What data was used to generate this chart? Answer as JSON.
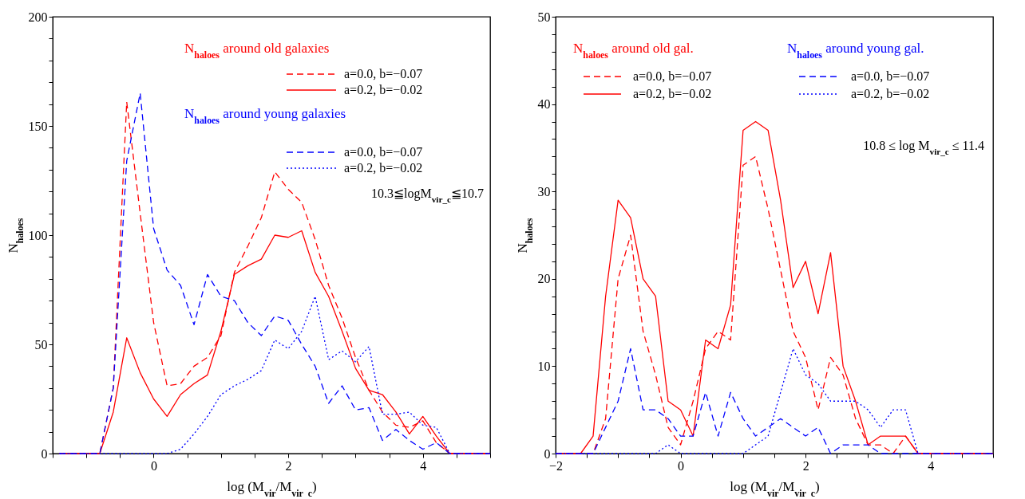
{
  "chart_data": [
    {
      "type": "line",
      "xlabel": "log (M$_{vir}$/M$_{vir_c}$)",
      "ylabel": "N$_{haloes}$",
      "annotations": [
        "N$_{haloes}$ around old galaxies",
        "N$_{haloes}$ around young galaxies",
        "10.3≦logM$_{vir_c}$≦10.7"
      ],
      "x": [
        -1.4,
        -1.2,
        -1.0,
        -0.8,
        -0.6,
        -0.4,
        -0.2,
        0,
        0.2,
        0.4,
        0.6,
        0.8,
        1.0,
        1.2,
        1.4,
        1.6,
        1.8,
        2.0,
        2.2,
        2.4,
        2.6,
        2.8,
        3.0,
        3.2,
        3.4,
        3.6,
        3.8,
        4.0,
        4.2,
        4.4,
        4.6,
        4.8,
        5.0
      ],
      "series": [
        {
          "name": "a=0.0,  b=−0.07",
          "color": "#ff0000",
          "line_style": "dashed",
          "values": [
            0,
            0,
            0,
            0,
            30,
            161,
            110,
            60,
            31,
            32,
            40,
            44,
            54,
            83,
            95,
            108,
            129,
            121,
            115,
            98,
            77,
            62,
            44,
            29,
            19,
            13,
            12,
            15,
            5,
            0,
            0,
            0,
            0
          ]
        },
        {
          "name": "a=0.2,  b=−0.02",
          "color": "#ff0000",
          "line_style": "solid",
          "values": [
            0,
            0,
            0,
            0,
            19,
            53,
            37,
            25,
            17,
            27,
            32,
            36,
            56,
            82,
            86,
            89,
            100,
            99,
            102,
            83,
            72,
            56,
            39,
            29,
            27,
            19,
            9,
            17,
            8,
            0,
            0,
            0,
            0
          ]
        },
        {
          "name": "a=0.0,  b=−0.07",
          "color": "#0000ff",
          "line_style": "dashed",
          "values": [
            0,
            0,
            0,
            0,
            30,
            134,
            165,
            103,
            84,
            77,
            59,
            82,
            72,
            70,
            60,
            54,
            63,
            61,
            50,
            40,
            23,
            31,
            20,
            21,
            6,
            11,
            6,
            2,
            5,
            0,
            0,
            0,
            0
          ]
        },
        {
          "name": "a=0.2,  b=−0.02",
          "color": "#0000ff",
          "line_style": "dotted",
          "values": [
            0,
            0,
            0,
            0,
            0,
            0,
            0,
            0,
            0,
            2,
            9,
            17,
            27,
            31,
            34,
            38,
            52,
            48,
            56,
            72,
            43,
            47,
            42,
            49,
            18,
            18,
            19,
            13,
            12,
            0,
            0,
            0,
            0
          ]
        }
      ],
      "xlim": [
        -1.5,
        5
      ],
      "ylim": [
        0,
        200
      ],
      "xticks": [
        {
          "value": -1.5,
          "label": null
        },
        {
          "value": -1,
          "label": null
        },
        {
          "value": -0.5,
          "label": null
        },
        0,
        {
          "value": 0.5,
          "label": null
        },
        {
          "value": 1,
          "label": null
        },
        {
          "value": 1.5,
          "label": null
        },
        2,
        {
          "value": 2.5,
          "label": null
        },
        {
          "value": 3,
          "label": null
        },
        {
          "value": 3.5,
          "label": null
        },
        4,
        {
          "value": 4.5,
          "label": null
        },
        {
          "value": 5,
          "label": null
        }
      ],
      "yticks": [
        0,
        {
          "value": 10,
          "label": null
        },
        {
          "value": 20,
          "label": null
        },
        {
          "value": 30,
          "label": null
        },
        {
          "value": 40,
          "label": null
        },
        50,
        {
          "value": 60,
          "label": null
        },
        {
          "value": 70,
          "label": null
        },
        {
          "value": 80,
          "label": null
        },
        {
          "value": 90,
          "label": null
        },
        100,
        {
          "value": 110,
          "label": null
        },
        {
          "value": 120,
          "label": null
        },
        {
          "value": 130,
          "label": null
        },
        {
          "value": 140,
          "label": null
        },
        150,
        {
          "value": 160,
          "label": null
        },
        {
          "value": 170,
          "label": null
        },
        {
          "value": 180,
          "label": null
        },
        {
          "value": 190,
          "label": null
        },
        200
      ],
      "legend": "top right"
    },
    {
      "type": "line",
      "xlabel": "log (M$_{vir}$/M$_{vir_c}$)",
      "ylabel": "N$_{haloes}$",
      "annotations": [
        "N$_{haloes}$ around old gal.",
        "N$_{haloes}$ around young gal.",
        "10.8 ≤ log M$_{vir_c}$ ≤ 11.4"
      ],
      "x": [
        -2.0,
        -1.8,
        -1.6,
        -1.4,
        -1.2,
        -1.0,
        -0.8,
        -0.6,
        -0.4,
        -0.2,
        0,
        0.2,
        0.4,
        0.6,
        0.8,
        1.0,
        1.2,
        1.4,
        1.6,
        1.8,
        2.0,
        2.2,
        2.4,
        2.6,
        2.8,
        3.0,
        3.2,
        3.4,
        3.6,
        3.8,
        4.0,
        4.2,
        4.4,
        4.6,
        4.8,
        5.0
      ],
      "series": [
        {
          "name": "a=0.0,  b=−0.07",
          "color": "#ff0000",
          "line_style": "dashed",
          "values": [
            0,
            0,
            0,
            0,
            4,
            20,
            25,
            14,
            9,
            3,
            1,
            6,
            12,
            14,
            13,
            33,
            34,
            28,
            21,
            14,
            11,
            5,
            11,
            9,
            4,
            1,
            1,
            0,
            2,
            0,
            0,
            0,
            0,
            0,
            0,
            0
          ]
        },
        {
          "name": "a=0.2,  b=−0.02",
          "color": "#ff0000",
          "line_style": "solid",
          "values": [
            0,
            0,
            0,
            2,
            18,
            29,
            27,
            20,
            18,
            6,
            5,
            2,
            13,
            12,
            17,
            37,
            38,
            37,
            29,
            19,
            22,
            16,
            23,
            10,
            6,
            1,
            2,
            2,
            2,
            0,
            0,
            0,
            0,
            0,
            0,
            0
          ]
        },
        {
          "name": "a=0.0,  b=−0.07",
          "color": "#0000ff",
          "line_style": "dashed",
          "values": [
            0,
            0,
            0,
            0,
            3,
            6,
            12,
            5,
            5,
            4,
            2,
            2,
            7,
            2,
            7,
            4,
            2,
            3,
            4,
            3,
            2,
            3,
            0,
            1,
            1,
            1,
            0,
            0,
            0,
            0,
            0,
            0,
            0,
            0,
            0,
            0
          ]
        },
        {
          "name": "a=0.2,  b=−0.02",
          "color": "#0000ff",
          "line_style": "dotted",
          "values": [
            0,
            0,
            0,
            0,
            0,
            0,
            0,
            0,
            0,
            1,
            0,
            0,
            0,
            0,
            0,
            0,
            1,
            2,
            7,
            12,
            9,
            8,
            6,
            6,
            6,
            5,
            3,
            5,
            5,
            0,
            0,
            0,
            0,
            0,
            0,
            0
          ]
        }
      ],
      "xlim": [
        -2,
        5
      ],
      "ylim": [
        0,
        50
      ],
      "xticks": [
        {
          "value": -2,
          "label": "−2"
        },
        {
          "value": -1.5,
          "label": null
        },
        {
          "value": -1,
          "label": null
        },
        {
          "value": -0.5,
          "label": null
        },
        0,
        {
          "value": 0.5,
          "label": null
        },
        {
          "value": 1,
          "label": null
        },
        {
          "value": 1.5,
          "label": null
        },
        2,
        {
          "value": 2.5,
          "label": null
        },
        {
          "value": 3,
          "label": null
        },
        {
          "value": 3.5,
          "label": null
        },
        4,
        {
          "value": 4.5,
          "label": null
        },
        {
          "value": 5,
          "label": null
        }
      ],
      "yticks": [
        0,
        {
          "value": 2,
          "label": null
        },
        {
          "value": 4,
          "label": null
        },
        {
          "value": 6,
          "label": null
        },
        {
          "value": 8,
          "label": null
        },
        10,
        {
          "value": 12,
          "label": null
        },
        {
          "value": 14,
          "label": null
        },
        {
          "value": 16,
          "label": null
        },
        {
          "value": 18,
          "label": null
        },
        20,
        {
          "value": 22,
          "label": null
        },
        {
          "value": 24,
          "label": null
        },
        {
          "value": 26,
          "label": null
        },
        {
          "value": 28,
          "label": null
        },
        30,
        {
          "value": 32,
          "label": null
        },
        {
          "value": 34,
          "label": null
        },
        {
          "value": 36,
          "label": null
        },
        {
          "value": 38,
          "label": null
        },
        40,
        {
          "value": 42,
          "label": null
        },
        {
          "value": 44,
          "label": null
        },
        {
          "value": 46,
          "label": null
        },
        {
          "value": 48,
          "label": null
        },
        50
      ],
      "legend": "top right"
    }
  ]
}
